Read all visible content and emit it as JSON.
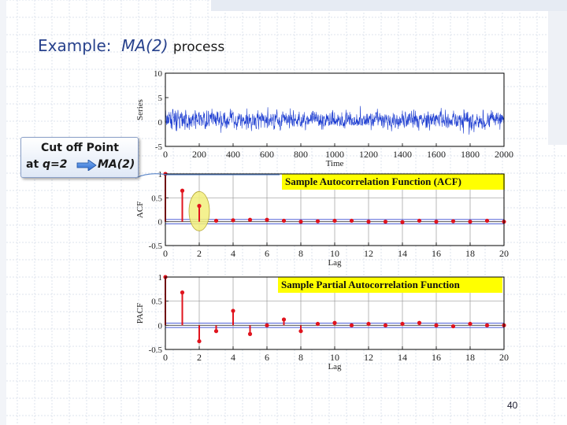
{
  "slide": {
    "title_prefix": "Example:",
    "title_model": "MA(2)",
    "title_suffix": "process",
    "page_number": "40"
  },
  "callout": {
    "line1": "Cut off Point",
    "line2_prefix": "at",
    "line2_q": "q=2",
    "line2_model": "MA(2)"
  },
  "colors": {
    "series": "#1f3fd1",
    "stem": "#e0141e",
    "band": "#4a5bd6",
    "title_blue": "#27418c",
    "label_bg": "#ffff00",
    "highlight": "#f2ef7c"
  },
  "chart_data": [
    {
      "type": "line",
      "ylabel": "Series",
      "xlabel": "Time",
      "xlim": [
        0,
        2000
      ],
      "ylim": [
        -5,
        10
      ],
      "xticks": [
        0,
        200,
        400,
        600,
        800,
        1000,
        1200,
        1400,
        1600,
        1800,
        2000
      ],
      "yticks": [
        -5,
        0,
        5,
        10
      ],
      "series_range": [
        -3,
        4.5
      ],
      "n": 2000
    },
    {
      "type": "bar",
      "title": "Sample Autocorrelation Function (ACF)",
      "ylabel": "ACF",
      "xlabel": "Lag",
      "xlim": [
        0,
        20
      ],
      "ylim": [
        -0.5,
        1
      ],
      "xticks": [
        0,
        2,
        4,
        6,
        8,
        10,
        12,
        14,
        16,
        18,
        20
      ],
      "yticks": [
        -0.5,
        0,
        0.5,
        1
      ],
      "lags": [
        0,
        1,
        2,
        3,
        4,
        5,
        6,
        7,
        8,
        9,
        10,
        11,
        12,
        13,
        14,
        15,
        16,
        17,
        18,
        19,
        20
      ],
      "values": [
        1,
        0.65,
        0.33,
        0.02,
        0.03,
        0.04,
        0.04,
        0.02,
        0.0,
        0.01,
        0.02,
        0.02,
        0.0,
        0.0,
        -0.01,
        0.02,
        0.0,
        0.01,
        0.0,
        0.02,
        0.0
      ],
      "confidence_band": 0.045,
      "highlight": "cut off at lag 2"
    },
    {
      "type": "bar",
      "title": "Sample Partial Autocorrelation Function",
      "ylabel": "PACF",
      "xlabel": "Lag",
      "xlim": [
        0,
        20
      ],
      "ylim": [
        -0.5,
        1
      ],
      "xticks": [
        0,
        2,
        4,
        6,
        8,
        10,
        12,
        14,
        16,
        18,
        20
      ],
      "yticks": [
        -0.5,
        0,
        0.5,
        1
      ],
      "lags": [
        0,
        1,
        2,
        3,
        4,
        5,
        6,
        7,
        8,
        9,
        10,
        11,
        12,
        13,
        14,
        15,
        16,
        17,
        18,
        19,
        20
      ],
      "values": [
        1,
        0.68,
        -0.33,
        -0.12,
        0.3,
        -0.18,
        0.0,
        0.12,
        -0.12,
        0.03,
        0.05,
        0.0,
        0.03,
        0.0,
        0.03,
        0.05,
        0.0,
        -0.02,
        0.03,
        0.0,
        0.0
      ],
      "confidence_band": 0.045
    }
  ]
}
